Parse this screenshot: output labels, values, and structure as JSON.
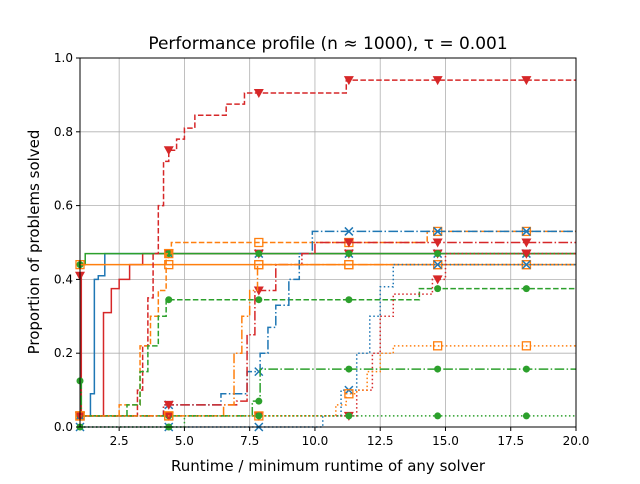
{
  "chart_data": {
    "type": "line",
    "title": "Performance profile (n ≈ 1000), τ = 0.001",
    "xlabel": "Runtime / minimum runtime of any solver",
    "ylabel": "Proportion of problems solved",
    "xlim": [
      1,
      20
    ],
    "ylim": [
      0,
      1
    ],
    "grid": true,
    "xticks": [
      "2.5",
      "5.0",
      "7.5",
      "10.0",
      "12.5",
      "15.0",
      "17.5",
      "20.0"
    ],
    "xtick_values": [
      2.5,
      5,
      7.5,
      10,
      12.5,
      15,
      17.5,
      20
    ],
    "yticks": [
      "0.0",
      "0.2",
      "0.4",
      "0.6",
      "0.8",
      "1.0"
    ],
    "ytick_values": [
      0,
      0.2,
      0.4,
      0.6,
      0.8,
      1.0
    ],
    "marker_x": [
      4.4,
      7.85,
      11.3,
      14.7,
      18.1
    ],
    "series": [
      {
        "name": "blue-solid",
        "color": "#1f77b4",
        "style": "solid",
        "marker": "x",
        "points": [
          [
            1,
            0.03
          ],
          [
            1.4,
            0.09
          ],
          [
            1.55,
            0.4
          ],
          [
            1.7,
            0.41
          ],
          [
            1.95,
            0.47
          ],
          [
            20,
            0.47
          ]
        ]
      },
      {
        "name": "red-solid",
        "color": "#d62728",
        "style": "solid",
        "marker": "v",
        "points": [
          [
            1,
            0.41
          ],
          [
            1.05,
            0.03
          ],
          [
            1.7,
            0.03
          ],
          [
            1.9,
            0.31
          ],
          [
            2.2,
            0.375
          ],
          [
            2.5,
            0.4
          ],
          [
            2.9,
            0.44
          ],
          [
            3.4,
            0.47
          ],
          [
            20,
            0.47
          ]
        ]
      },
      {
        "name": "green-solid",
        "color": "#2ca02c",
        "style": "solid",
        "marker": "o",
        "points": [
          [
            1,
            0.44
          ],
          [
            1.2,
            0.47
          ],
          [
            20,
            0.47
          ]
        ]
      },
      {
        "name": "orange-solid",
        "color": "#ff7f0e",
        "style": "solid",
        "marker": "s",
        "points": [
          [
            1,
            0.44
          ],
          [
            20,
            0.44
          ]
        ]
      },
      {
        "name": "red-dashed",
        "color": "#d62728",
        "style": "dashed",
        "marker": "v",
        "points": [
          [
            1,
            0.03
          ],
          [
            3.2,
            0.1
          ],
          [
            3.4,
            0.22
          ],
          [
            3.6,
            0.35
          ],
          [
            3.8,
            0.47
          ],
          [
            4.0,
            0.6
          ],
          [
            4.2,
            0.72
          ],
          [
            4.4,
            0.75
          ],
          [
            4.7,
            0.78
          ],
          [
            5.0,
            0.81
          ],
          [
            5.4,
            0.845
          ],
          [
            6.6,
            0.875
          ],
          [
            7.3,
            0.905
          ],
          [
            11.2,
            0.94
          ],
          [
            20,
            0.94
          ]
        ]
      },
      {
        "name": "orange-dashed",
        "color": "#ff7f0e",
        "style": "dashed",
        "marker": "s",
        "points": [
          [
            1,
            0.03
          ],
          [
            2.5,
            0.06
          ],
          [
            3.3,
            0.22
          ],
          [
            3.7,
            0.3
          ],
          [
            4.0,
            0.37
          ],
          [
            4.3,
            0.47
          ],
          [
            4.5,
            0.5
          ],
          [
            14.3,
            0.53
          ],
          [
            20,
            0.53
          ]
        ]
      },
      {
        "name": "green-dashed",
        "color": "#2ca02c",
        "style": "dashed",
        "marker": "o",
        "points": [
          [
            1,
            0.03
          ],
          [
            2.8,
            0.06
          ],
          [
            3.3,
            0.15
          ],
          [
            3.6,
            0.22
          ],
          [
            4.0,
            0.3
          ],
          [
            4.3,
            0.345
          ],
          [
            14.0,
            0.375
          ],
          [
            20,
            0.375
          ]
        ]
      },
      {
        "name": "blue-dashdot",
        "color": "#1f77b4",
        "style": "dashdot",
        "marker": "x",
        "points": [
          [
            1,
            0.03
          ],
          [
            4.2,
            0.06
          ],
          [
            6.4,
            0.09
          ],
          [
            7.4,
            0.15
          ],
          [
            7.9,
            0.2
          ],
          [
            8.2,
            0.27
          ],
          [
            8.5,
            0.33
          ],
          [
            9.0,
            0.4
          ],
          [
            9.4,
            0.47
          ],
          [
            9.9,
            0.53
          ],
          [
            20,
            0.53
          ]
        ]
      },
      {
        "name": "red-dashdot",
        "color": "#d62728",
        "style": "dashdot",
        "marker": "v",
        "points": [
          [
            1,
            0.03
          ],
          [
            4.2,
            0.06
          ],
          [
            7.0,
            0.07
          ],
          [
            7.4,
            0.25
          ],
          [
            7.7,
            0.37
          ],
          [
            8.5,
            0.44
          ],
          [
            9.5,
            0.47
          ],
          [
            10.0,
            0.5
          ],
          [
            20,
            0.5
          ]
        ]
      },
      {
        "name": "orange-dashdot",
        "color": "#ff7f0e",
        "style": "dashdot",
        "marker": "s",
        "points": [
          [
            1,
            0.03
          ],
          [
            6.5,
            0.06
          ],
          [
            6.9,
            0.2
          ],
          [
            7.2,
            0.3
          ],
          [
            7.5,
            0.37
          ],
          [
            7.8,
            0.44
          ],
          [
            20,
            0.44
          ]
        ]
      },
      {
        "name": "green-dashdot",
        "color": "#2ca02c",
        "style": "dashdot",
        "marker": "o",
        "points": [
          [
            1,
            0.125
          ],
          [
            1.05,
            0.03
          ],
          [
            7.6,
            0.07
          ],
          [
            7.9,
            0.157
          ],
          [
            20,
            0.157
          ]
        ]
      },
      {
        "name": "blue-dotted",
        "color": "#1f77b4",
        "style": "dotted",
        "marker": "x",
        "points": [
          [
            1,
            0
          ],
          [
            10.3,
            0.03
          ],
          [
            11.0,
            0.1
          ],
          [
            11.6,
            0.2
          ],
          [
            12.1,
            0.3
          ],
          [
            12.5,
            0.38
          ],
          [
            13.0,
            0.44
          ],
          [
            20,
            0.44
          ]
        ]
      },
      {
        "name": "red-dotted",
        "color": "#d62728",
        "style": "dotted",
        "marker": "v",
        "points": [
          [
            1,
            0.03
          ],
          [
            11.3,
            0.03
          ],
          [
            11.6,
            0.1
          ],
          [
            12.2,
            0.2
          ],
          [
            12.5,
            0.3
          ],
          [
            13.0,
            0.36
          ],
          [
            14.5,
            0.4
          ],
          [
            15.0,
            0.47
          ],
          [
            20,
            0.47
          ]
        ]
      },
      {
        "name": "orange-dotted",
        "color": "#ff7f0e",
        "style": "dotted",
        "marker": "s",
        "points": [
          [
            1,
            0.03
          ],
          [
            10.8,
            0.06
          ],
          [
            11.2,
            0.09
          ],
          [
            11.6,
            0.1
          ],
          [
            12.0,
            0.15
          ],
          [
            12.5,
            0.2
          ],
          [
            13.0,
            0.22
          ],
          [
            20,
            0.22
          ]
        ]
      },
      {
        "name": "green-dotted",
        "color": "#2ca02c",
        "style": "dotted",
        "marker": "o",
        "points": [
          [
            1,
            0
          ],
          [
            5.0,
            0.03
          ],
          [
            20,
            0.03
          ]
        ]
      }
    ]
  }
}
